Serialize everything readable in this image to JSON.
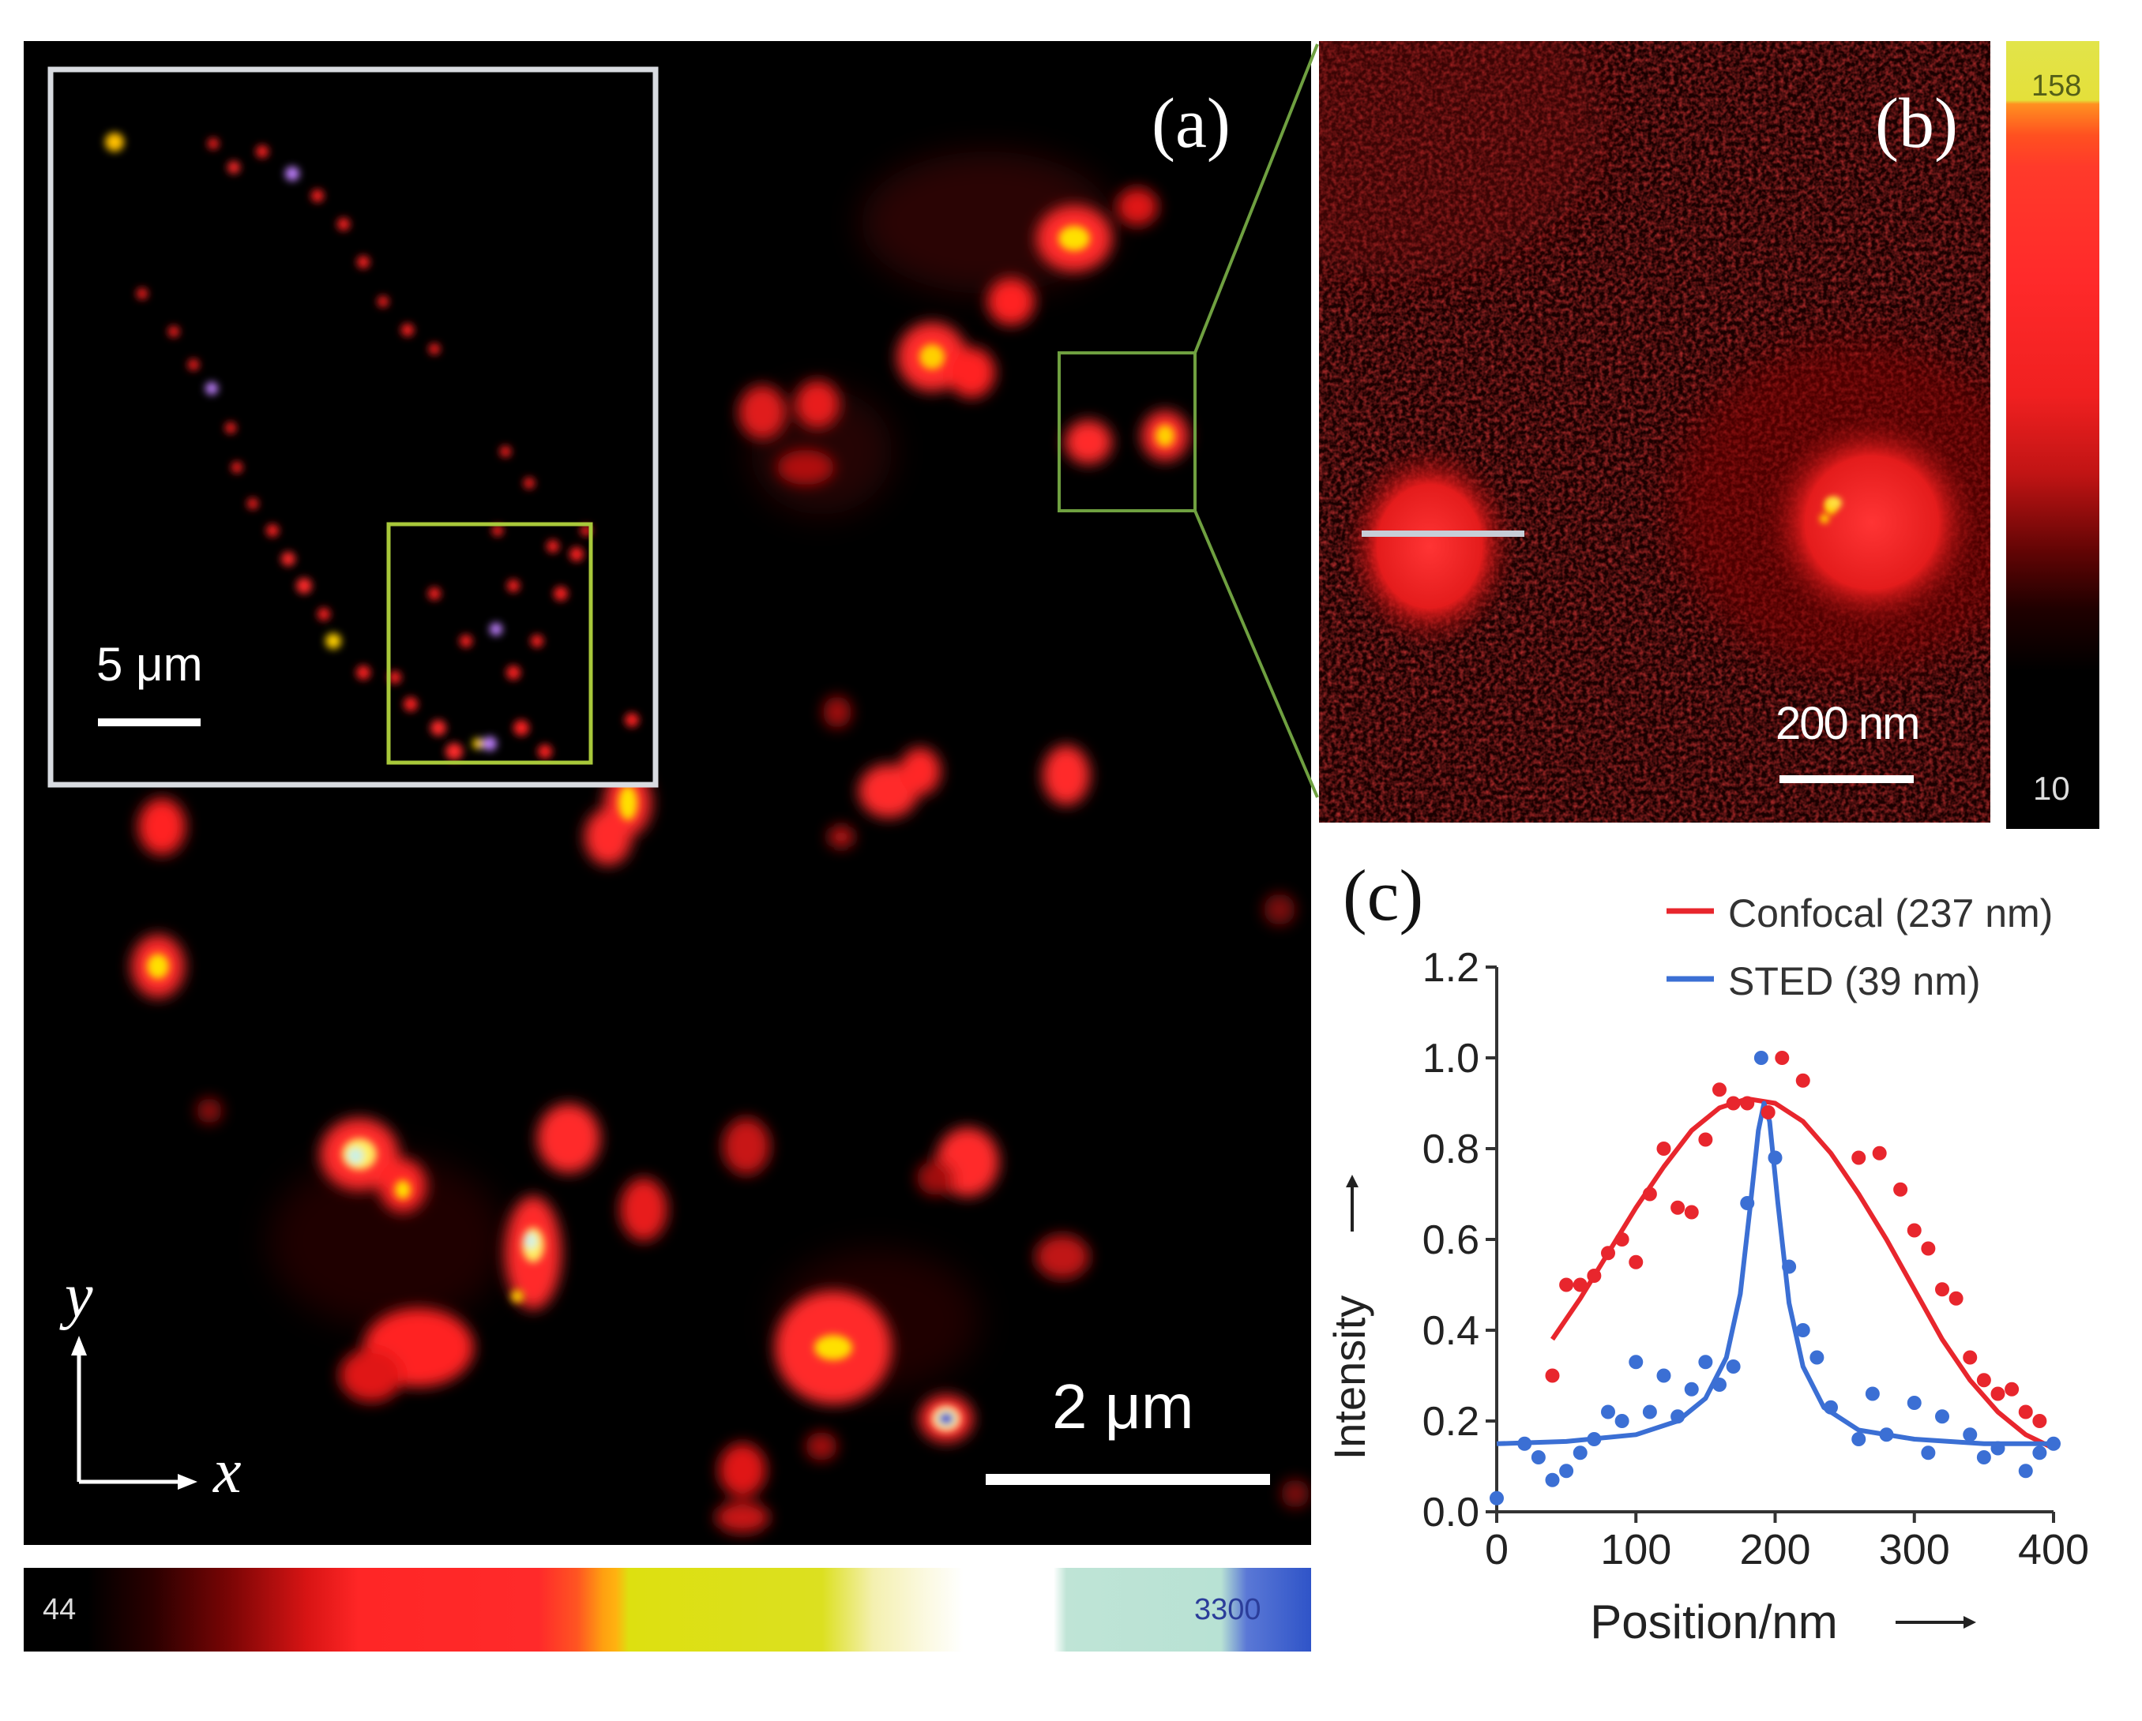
{
  "panel_a": {
    "label": "(a)",
    "scale_bar_label": "2 μm",
    "inset_scale_label": "5 μm",
    "axis_y_label": "y",
    "axis_x_label": "x"
  },
  "colorbar_a": {
    "min_label": "44",
    "max_label": "3300"
  },
  "panel_b": {
    "label": "(b)",
    "scale_bar_label": "200 nm"
  },
  "colorbar_b": {
    "max_label": "158",
    "min_label": "10"
  },
  "panel_c": {
    "label": "(c)"
  },
  "colors": {
    "background": "#000000",
    "inset_frame": "#d8dbe0",
    "inset_zoom_box": "#a8c83a",
    "zoom_box": "#6fa040",
    "confocal": "#e8262d",
    "sted": "#3b6fd4"
  },
  "chart_data": {
    "type": "scatter",
    "xlabel": "Position/nm",
    "ylabel": "Intensity",
    "xlim": [
      0,
      400
    ],
    "ylim": [
      0.0,
      1.2
    ],
    "xticks": [
      "0",
      "100",
      "200",
      "300",
      "400"
    ],
    "yticks": [
      "0.0",
      "0.2",
      "0.4",
      "0.6",
      "0.8",
      "1.0",
      "1.2"
    ],
    "legend_position": "top-right",
    "series": [
      {
        "name": "Confocal (237 nm)",
        "color": "#e8262d",
        "points": [
          [
            40,
            0.3
          ],
          [
            50,
            0.5
          ],
          [
            60,
            0.5
          ],
          [
            70,
            0.52
          ],
          [
            80,
            0.57
          ],
          [
            90,
            0.6
          ],
          [
            100,
            0.55
          ],
          [
            110,
            0.7
          ],
          [
            120,
            0.8
          ],
          [
            130,
            0.67
          ],
          [
            140,
            0.66
          ],
          [
            150,
            0.82
          ],
          [
            160,
            0.93
          ],
          [
            170,
            0.9
          ],
          [
            180,
            0.9
          ],
          [
            195,
            0.88
          ],
          [
            205,
            1.0
          ],
          [
            220,
            0.95
          ],
          [
            260,
            0.78
          ],
          [
            275,
            0.79
          ],
          [
            290,
            0.71
          ],
          [
            300,
            0.62
          ],
          [
            310,
            0.58
          ],
          [
            320,
            0.49
          ],
          [
            330,
            0.47
          ],
          [
            340,
            0.34
          ],
          [
            350,
            0.29
          ],
          [
            360,
            0.26
          ],
          [
            370,
            0.27
          ],
          [
            380,
            0.22
          ],
          [
            390,
            0.2
          ]
        ],
        "fit": [
          [
            40,
            0.38
          ],
          [
            60,
            0.47
          ],
          [
            80,
            0.57
          ],
          [
            100,
            0.67
          ],
          [
            120,
            0.76
          ],
          [
            140,
            0.84
          ],
          [
            160,
            0.89
          ],
          [
            180,
            0.91
          ],
          [
            200,
            0.9
          ],
          [
            220,
            0.86
          ],
          [
            240,
            0.79
          ],
          [
            260,
            0.7
          ],
          [
            280,
            0.6
          ],
          [
            300,
            0.49
          ],
          [
            320,
            0.38
          ],
          [
            340,
            0.29
          ],
          [
            360,
            0.22
          ],
          [
            380,
            0.17
          ],
          [
            400,
            0.14
          ]
        ]
      },
      {
        "name": "STED (39 nm)",
        "color": "#3b6fd4",
        "points": [
          [
            0,
            0.03
          ],
          [
            20,
            0.15
          ],
          [
            30,
            0.12
          ],
          [
            40,
            0.07
          ],
          [
            50,
            0.09
          ],
          [
            60,
            0.13
          ],
          [
            70,
            0.16
          ],
          [
            80,
            0.22
          ],
          [
            90,
            0.2
          ],
          [
            100,
            0.33
          ],
          [
            110,
            0.22
          ],
          [
            120,
            0.3
          ],
          [
            130,
            0.21
          ],
          [
            140,
            0.27
          ],
          [
            150,
            0.33
          ],
          [
            160,
            0.28
          ],
          [
            170,
            0.32
          ],
          [
            180,
            0.68
          ],
          [
            190,
            1.0
          ],
          [
            200,
            0.78
          ],
          [
            210,
            0.54
          ],
          [
            220,
            0.4
          ],
          [
            230,
            0.34
          ],
          [
            240,
            0.23
          ],
          [
            260,
            0.16
          ],
          [
            270,
            0.26
          ],
          [
            280,
            0.17
          ],
          [
            300,
            0.24
          ],
          [
            310,
            0.13
          ],
          [
            320,
            0.21
          ],
          [
            340,
            0.17
          ],
          [
            350,
            0.12
          ],
          [
            360,
            0.14
          ],
          [
            380,
            0.09
          ],
          [
            390,
            0.13
          ],
          [
            400,
            0.15
          ]
        ],
        "fit": [
          [
            0,
            0.15
          ],
          [
            50,
            0.155
          ],
          [
            100,
            0.17
          ],
          [
            130,
            0.2
          ],
          [
            150,
            0.25
          ],
          [
            165,
            0.34
          ],
          [
            175,
            0.48
          ],
          [
            182,
            0.67
          ],
          [
            188,
            0.84
          ],
          [
            192,
            0.9
          ],
          [
            196,
            0.86
          ],
          [
            202,
            0.68
          ],
          [
            210,
            0.46
          ],
          [
            220,
            0.32
          ],
          [
            235,
            0.23
          ],
          [
            260,
            0.18
          ],
          [
            300,
            0.16
          ],
          [
            350,
            0.15
          ],
          [
            400,
            0.15
          ]
        ]
      }
    ]
  }
}
